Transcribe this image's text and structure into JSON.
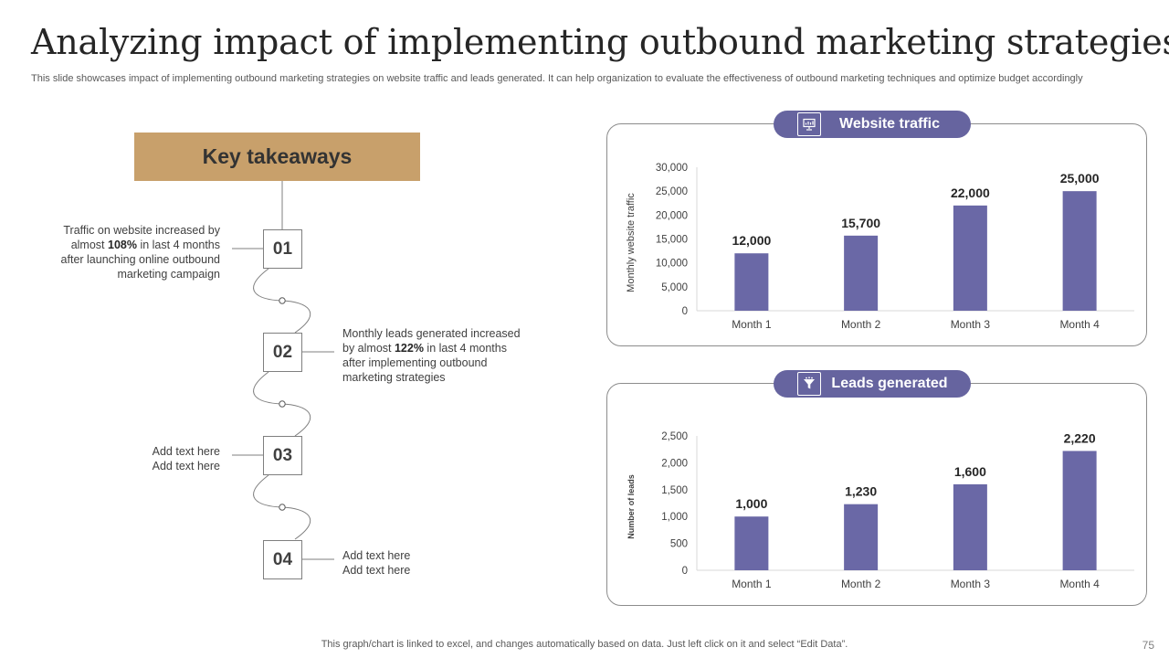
{
  "title": "Analyzing impact of implementing outbound marketing strategies",
  "subtitle": "This slide showcases impact of implementing outbound marketing strategies on website traffic and leads generated. It can help organization to evaluate the effectiveness of outbound marketing techniques and optimize budget accordingly",
  "takeaways": {
    "heading": "Key takeaways",
    "steps": [
      {
        "number": "01",
        "text_before": "Traffic on website increased by almost ",
        "highlight": "108%",
        "text_after": " in last 4 months after launching online outbound marketing campaign"
      },
      {
        "number": "02",
        "text_before": "Monthly leads generated increased by almost ",
        "highlight": "122%",
        "text_after": " in last 4 months after implementing outbound marketing strategies"
      },
      {
        "number": "03",
        "text_before": "Add text here Add text here",
        "highlight": "",
        "text_after": ""
      },
      {
        "number": "04",
        "text_before": "Add text here Add text here",
        "highlight": "",
        "text_after": ""
      }
    ]
  },
  "colors": {
    "accent": "#66649f",
    "bar": "#6a68a6",
    "heading_bg": "#c8a06b"
  },
  "chart_data": [
    {
      "type": "bar",
      "title": "Website traffic",
      "icon": "presentation-icon",
      "categories": [
        "Month 1",
        "Month 2",
        "Month 3",
        "Month 4"
      ],
      "values": [
        12000,
        15700,
        22000,
        25000
      ],
      "value_labels": [
        "12,000",
        "15,700",
        "22,000",
        "25,000"
      ],
      "ylabel": "Monthly website traffic",
      "xlabel": "",
      "ylim": [
        0,
        30000
      ],
      "yticks": [
        0,
        5000,
        10000,
        15000,
        20000,
        25000,
        30000
      ],
      "ytick_labels": [
        "0",
        "5,000",
        "10,000",
        "15,000",
        "20,000",
        "25,000",
        "30,000"
      ]
    },
    {
      "type": "bar",
      "title": "Leads generated",
      "icon": "funnel-icon",
      "categories": [
        "Month 1",
        "Month 2",
        "Month 3",
        "Month 4"
      ],
      "values": [
        1000,
        1230,
        1600,
        2220
      ],
      "value_labels": [
        "1,000",
        "1,230",
        "1,600",
        "2,220"
      ],
      "ylabel": "Number of leads",
      "xlabel": "",
      "ylim": [
        0,
        2500
      ],
      "yticks": [
        0,
        500,
        1000,
        1500,
        2000,
        2500
      ],
      "ytick_labels": [
        "0",
        "500",
        "1,000",
        "1,500",
        "2,000",
        "2,500"
      ]
    }
  ],
  "footer": "This graph/chart is linked to excel, and changes automatically based on data. Just left click on it and select “Edit Data”.",
  "page_number": "75"
}
